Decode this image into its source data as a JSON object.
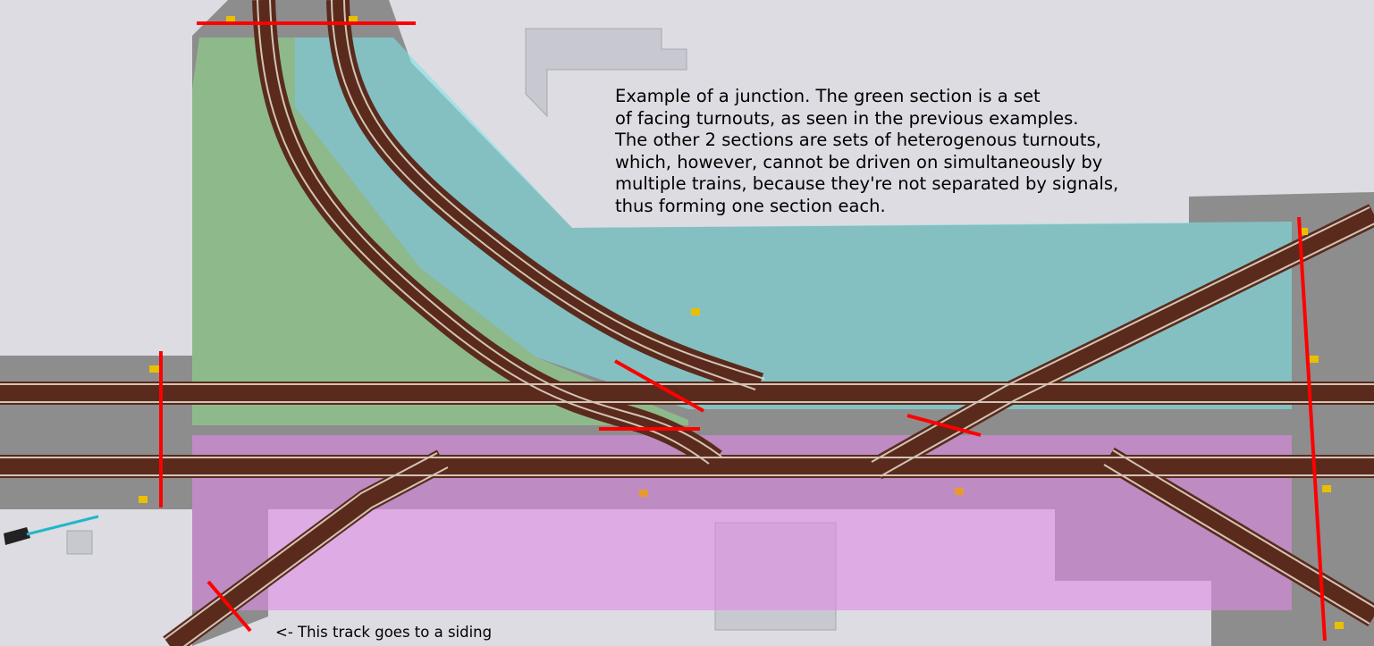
{
  "annotations": {
    "main_note_lines": [
      "Example of a junction. The green section is a set",
      "of facing turnouts, as seen in the previous examples.",
      "The other 2 sections are sets of heterogenous turnouts,",
      "which, however, cannot be driven on simultaneously by",
      "multiple trains, because they're not separated by signals,",
      "thus forming one section each."
    ],
    "siding_note": "<- This track goes to a siding"
  },
  "sections": [
    {
      "name": "green",
      "color": "#8fe08a"
    },
    {
      "name": "cyan",
      "color": "#7fe3e6"
    },
    {
      "name": "magenta",
      "color": "#e08ae6"
    }
  ],
  "colors": {
    "background": "#dcdce2",
    "stone": "#8a8a8a",
    "rail_bed": "#5a2a1c",
    "rail": "#e8e0d0",
    "section_boundary": "#ff0000",
    "signal": "#e8c000"
  }
}
